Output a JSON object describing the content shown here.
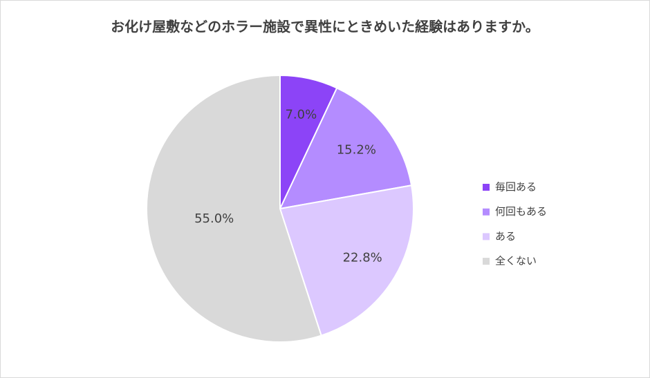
{
  "chart_data": {
    "type": "pie",
    "title": "お化け屋敷などのホラー施設で異性にときめいた経験はありますか。",
    "categories": [
      "毎回ある",
      "何回もある",
      "ある",
      "全くない"
    ],
    "values": [
      7.0,
      15.2,
      22.8,
      55.0
    ],
    "value_labels": [
      "7.0%",
      "15.2%",
      "22.8%",
      "55.0%"
    ],
    "colors": [
      "#8c44f7",
      "#b48cff",
      "#dcc8ff",
      "#d9d9d9"
    ],
    "legend": "right"
  }
}
